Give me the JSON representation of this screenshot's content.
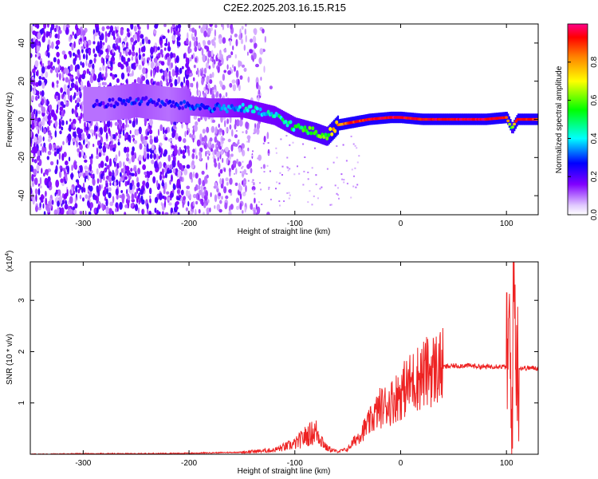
{
  "title": "C2E2.2025.203.16.15.R15",
  "chart_data": [
    {
      "type": "heatmap",
      "xlabel": "Height of straight line (km)",
      "ylabel": "Frequency (Hz)",
      "xlim": [
        -350,
        130
      ],
      "ylim": [
        -50,
        50
      ],
      "xticks": [
        -300,
        -200,
        -100,
        0,
        100
      ],
      "yticks": [
        -40,
        -20,
        0,
        20,
        40
      ],
      "colorbar": {
        "label": "Normalized spectral amplitude",
        "range": [
          0,
          1
        ],
        "ticks": [
          0.0,
          0.2,
          0.4,
          0.6,
          0.8
        ],
        "colormap": [
          "#ffffff",
          "#8000ff",
          "#0000ff",
          "#00ffff",
          "#00ff00",
          "#ffff00",
          "#ff8000",
          "#ff0000",
          "#ff0080"
        ]
      },
      "ridge": {
        "height_km": [
          -280,
          -250,
          -220,
          -180,
          -150,
          -120,
          -100,
          -80,
          -70,
          -60,
          -50,
          -30,
          -10,
          0,
          20,
          50,
          80,
          100,
          105,
          110,
          130
        ],
        "frequency_hz": [
          8,
          10,
          8,
          6,
          6,
          2,
          -4,
          -7,
          -9,
          -3,
          -2,
          0,
          1,
          1,
          0,
          0,
          0,
          1,
          -5,
          0,
          0
        ],
        "amplitude": [
          0.2,
          0.25,
          0.2,
          0.3,
          0.35,
          0.4,
          0.45,
          0.5,
          0.5,
          0.75,
          0.8,
          0.9,
          0.92,
          0.9,
          0.9,
          0.9,
          0.92,
          0.85,
          0.5,
          0.85,
          0.85
        ]
      },
      "noise_region_km": [
        -350,
        -150
      ],
      "grid": false
    },
    {
      "type": "line",
      "xlabel": "Height of straight line (km)",
      "ylabel": "SNR (10 * v/v)",
      "y_multiplier": "(x10",
      "y_multiplier_exp": "4",
      "y_multiplier_close": ")",
      "xlim": [
        -350,
        130
      ],
      "ylim": [
        0,
        3.75
      ],
      "xticks": [
        -300,
        -200,
        -100,
        0,
        100
      ],
      "yticks": [
        1,
        2,
        3
      ],
      "color": "#ee2222",
      "series": [
        {
          "x": [
            -350,
            -300,
            -250,
            -200,
            -150,
            -120,
            -100,
            -90,
            -80,
            -75,
            -70,
            -60,
            -50,
            -40,
            -30,
            -20,
            -10,
            0,
            10,
            20,
            30,
            40,
            50,
            60,
            70,
            80,
            90,
            100,
            103,
            105,
            107,
            110,
            120,
            130
          ],
          "y": [
            0.0,
            0.01,
            0.01,
            0.02,
            0.04,
            0.08,
            0.2,
            0.35,
            0.45,
            0.3,
            0.12,
            0.05,
            0.1,
            0.35,
            0.6,
            0.9,
            1.0,
            1.2,
            1.4,
            1.55,
            1.65,
            1.7,
            1.72,
            1.73,
            1.72,
            1.7,
            1.72,
            1.7,
            2.3,
            0.3,
            3.6,
            1.68,
            1.68,
            1.68
          ]
        }
      ],
      "grid": false
    }
  ]
}
